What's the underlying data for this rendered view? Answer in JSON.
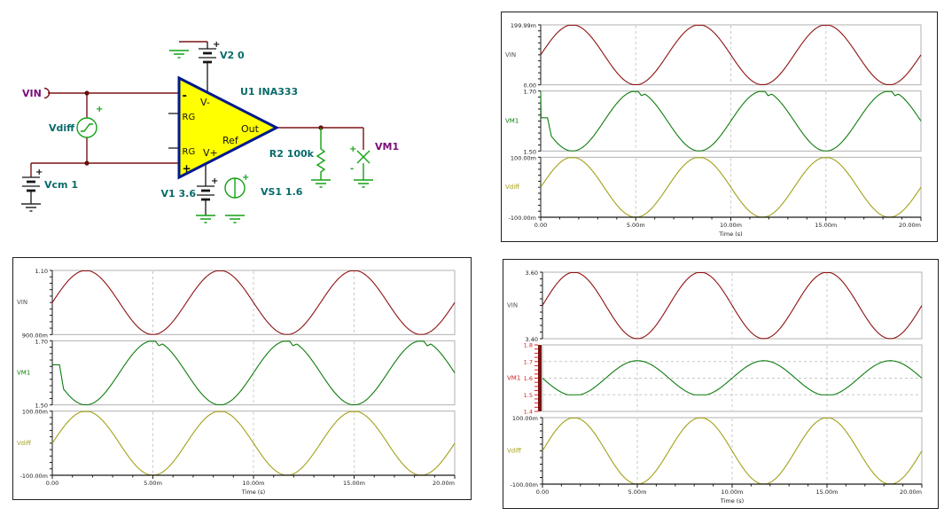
{
  "schematic": {
    "net_labels": {
      "vin": "VIN",
      "vm1": "VM1"
    },
    "part_labels": {
      "vdiff": "Vdiff",
      "vcm": "Vcm 1",
      "v2": "V2 0",
      "u1": "U1 INA333",
      "v1": "V1 3.6",
      "vs1": "VS1 1.6",
      "r2": "R2 100k"
    },
    "pin_labels": {
      "inv": "-",
      "rg_top": "RG",
      "rg_bot": "RG",
      "noninv": "+",
      "vminus": "V-",
      "vplus": "V+",
      "out": "Out",
      "ref": "Ref"
    },
    "sym": {
      "plus": "+",
      "minus": "-"
    },
    "colors": {
      "wire": "#7b1416",
      "component_green": "#13a013",
      "net_label": "#7a0d7a",
      "part_label": "#0a6a6a",
      "opamp_fill": "#ffff00",
      "opamp_border": "#001a8c",
      "battery": "#151515"
    }
  },
  "chart_style": {
    "border": "#b0b0b0",
    "grid": "#c8c8c8",
    "axis": "#1a1a1a",
    "tick_text": "#1a1a1a",
    "trace_red": "#8f1111",
    "trace_green": "#0e7c0e",
    "trace_olive": "#a4a017",
    "selected_axis_red": "#cc2222"
  },
  "chart_data": [
    {
      "panel": "top-right",
      "type": "line",
      "xlabel": "Time (s)",
      "x_ticks": [
        "0.00",
        "5.00m",
        "10.00m",
        "15.00m",
        "20.00m"
      ],
      "x_range": [
        0,
        0.02
      ],
      "frequency_hz": 150,
      "grid": "dashed-vertical",
      "subplots": [
        {
          "trace": "VIN",
          "color": "#8f1111",
          "label_color": "#4f4f4f",
          "ylim": [
            0,
            0.19999
          ],
          "ytick_labels": [
            "199.99m",
            "0.00"
          ],
          "waveform": "sine",
          "offset": 0.1,
          "amplitude": 0.09999,
          "phase": "+"
        },
        {
          "trace": "VM1",
          "color": "#0e7c0e",
          "label_color": "#0e7c0e",
          "ylim": [
            1.5,
            1.7
          ],
          "ytick_labels": [
            "1.70",
            "1.50"
          ],
          "waveform": "sine",
          "offset": 1.6,
          "amplitude": 0.1,
          "phase": "-",
          "start_anomaly": {
            "type": "vline",
            "from": 1.7,
            "plateau": 1.611,
            "until_s": 0.00055
          },
          "peak_notches": true
        },
        {
          "trace": "Vdiff",
          "color": "#a4a017",
          "label_color": "#a4a017",
          "ylim": [
            -0.1,
            0.1
          ],
          "ytick_labels": [
            "100.00m",
            "-100.00m"
          ],
          "waveform": "sine",
          "offset": 0,
          "amplitude": 0.1,
          "phase": "+"
        }
      ]
    },
    {
      "panel": "bottom-left",
      "type": "line",
      "xlabel": "Time (s)",
      "x_ticks": [
        "0.00",
        "5.00m",
        "10.00m",
        "15.00m",
        "20.00m"
      ],
      "x_range": [
        0,
        0.02
      ],
      "frequency_hz": 150,
      "grid": "dashed-vertical",
      "subplots": [
        {
          "trace": "VIN",
          "color": "#8f1111",
          "label_color": "#4f4f4f",
          "ylim": [
            0.9,
            1.1
          ],
          "ytick_labels": [
            "1.10",
            "900.00m"
          ],
          "waveform": "sine",
          "offset": 1.0,
          "amplitude": 0.1,
          "phase": "+"
        },
        {
          "trace": "VM1",
          "color": "#0e7c0e",
          "label_color": "#0e7c0e",
          "ylim": [
            1.5,
            1.7
          ],
          "ytick_labels": [
            "1.70",
            "1.50"
          ],
          "waveform": "sine",
          "offset": 1.6,
          "amplitude": 0.1,
          "phase": "-",
          "start_anomaly": {
            "type": "step",
            "plateau": 1.625,
            "until_s": 0.00055
          },
          "peak_notches": true
        },
        {
          "trace": "Vdiff",
          "color": "#a4a017",
          "label_color": "#a4a017",
          "ylim": [
            -0.1,
            0.1
          ],
          "ytick_labels": [
            "100.00m",
            "-100.00m"
          ],
          "waveform": "sine",
          "offset": 0,
          "amplitude": 0.1,
          "phase": "+"
        }
      ]
    },
    {
      "panel": "bottom-right",
      "type": "line",
      "xlabel": "Time (s)",
      "x_ticks": [
        "0.00",
        "5.00m",
        "10.00m",
        "15.00m",
        "20.00m"
      ],
      "x_range": [
        0,
        0.02
      ],
      "frequency_hz": 150,
      "grid": "dashed-vertical",
      "subplots": [
        {
          "trace": "VIN",
          "color": "#8f1111",
          "label_color": "#4f4f4f",
          "ylim": [
            3.4,
            3.6
          ],
          "ytick_labels": [
            "3.60",
            "3.40"
          ],
          "waveform": "sine",
          "offset": 3.5,
          "amplitude": 0.1,
          "phase": "+"
        },
        {
          "trace": "VM1",
          "color": "#0e7c0e",
          "label_color": "#cc2222",
          "ylim": [
            1.4,
            1.8
          ],
          "waveform": "sine",
          "offset": 1.6,
          "amplitude": 0.105,
          "phase": "-",
          "clip_min": 1.5,
          "selected_axis": {
            "bar_color": "#7a1212",
            "tick_color": "#e02020",
            "label_color": "#cc2222",
            "labels": [
              "1.8",
              "1.7",
              "1.6",
              "1.5",
              "1.4"
            ],
            "gridlines_v": [
              1.7,
              1.6,
              1.5
            ]
          }
        },
        {
          "trace": "Vdiff",
          "color": "#a4a017",
          "label_color": "#a4a017",
          "ylim": [
            -0.1,
            0.1
          ],
          "ytick_labels": [
            "100.00m",
            "-100.00m"
          ],
          "waveform": "sine",
          "offset": 0,
          "amplitude": 0.1,
          "phase": "+"
        }
      ]
    }
  ]
}
